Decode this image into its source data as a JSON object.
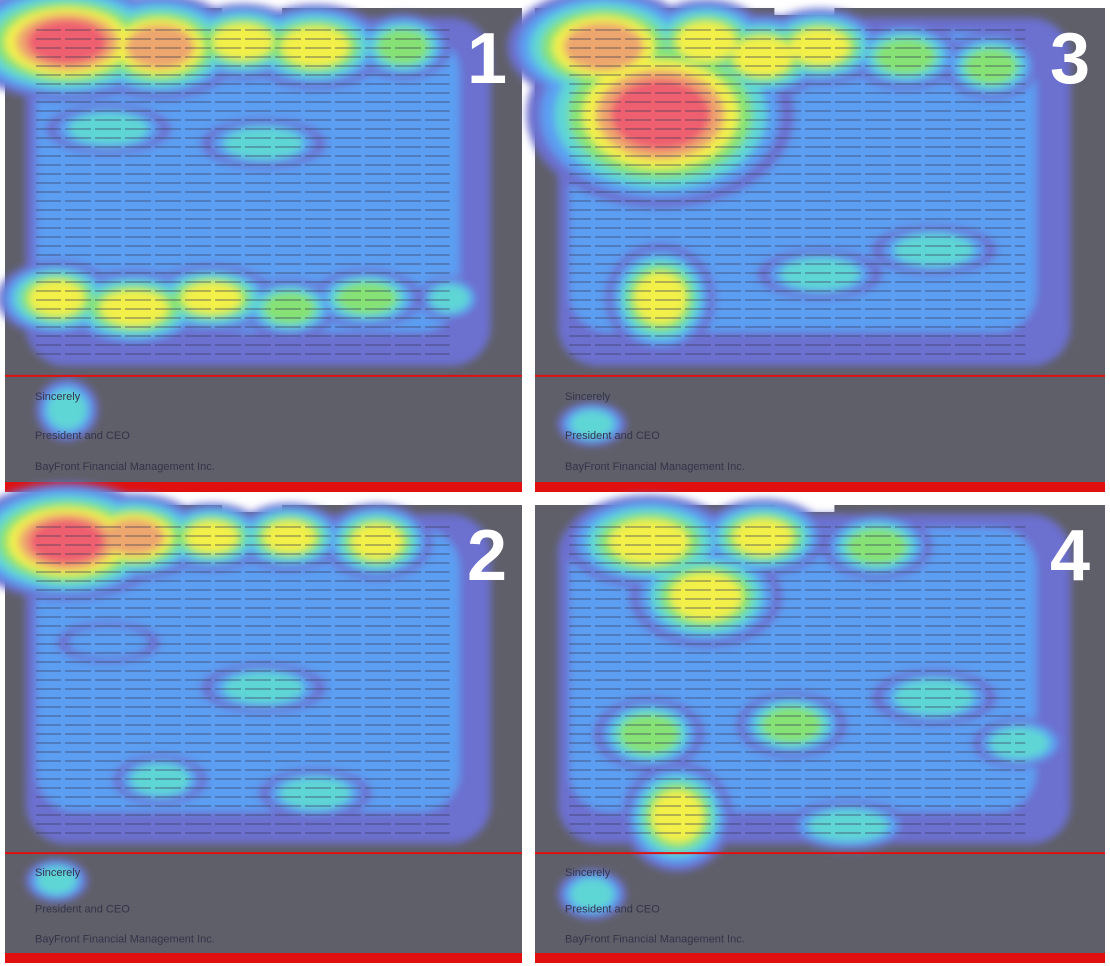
{
  "panels": [
    {
      "label": "1",
      "closing": "Sincerely",
      "signature": "President and CEO",
      "company": "BayFront Financial Management Inc."
    },
    {
      "label": "3",
      "closing": "Sincerely",
      "signature": "President and CEO",
      "company": "BayFront Financial Management Inc."
    },
    {
      "label": "2",
      "closing": "Sincerely",
      "signature": "President and CEO",
      "company": "BayFront Financial Management Inc."
    },
    {
      "label": "4",
      "closing": "Sincerely",
      "signature": "President and CEO",
      "company": "BayFront Financial Management Inc."
    }
  ]
}
